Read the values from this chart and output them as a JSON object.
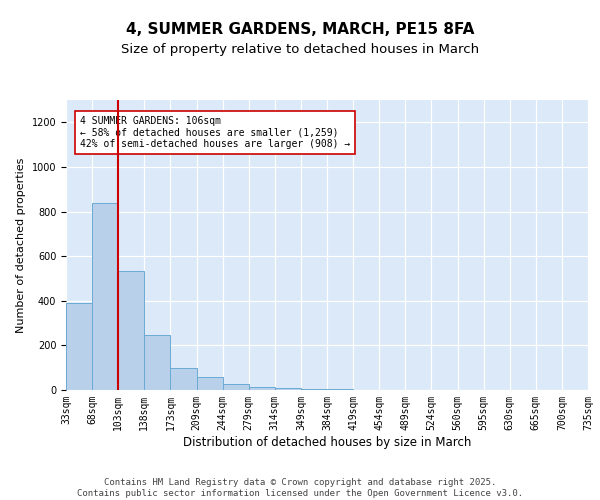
{
  "title": "4, SUMMER GARDENS, MARCH, PE15 8FA",
  "subtitle": "Size of property relative to detached houses in March",
  "xlabel": "Distribution of detached houses by size in March",
  "ylabel": "Number of detached properties",
  "bar_values": [
    390,
    840,
    535,
    248,
    100,
    58,
    25,
    15,
    10,
    5,
    3,
    2,
    1,
    1,
    1,
    0,
    0,
    0,
    0,
    0
  ],
  "categories": [
    "33sqm",
    "68sqm",
    "103sqm",
    "138sqm",
    "173sqm",
    "209sqm",
    "244sqm",
    "279sqm",
    "314sqm",
    "349sqm",
    "384sqm",
    "419sqm",
    "454sqm",
    "489sqm",
    "524sqm",
    "560sqm",
    "595sqm",
    "630sqm",
    "665sqm",
    "700sqm",
    "735sqm"
  ],
  "bar_color": "#b8d0ea",
  "bar_edge_color": "#6aaad4",
  "bar_width": 1.0,
  "vline_color": "#cc0000",
  "annotation_text": "4 SUMMER GARDENS: 106sqm\n← 58% of detached houses are smaller (1,259)\n42% of semi-detached houses are larger (908) →",
  "annotation_box_color": "white",
  "annotation_box_edge": "#cc0000",
  "ylim": [
    0,
    1300
  ],
  "yticks": [
    0,
    200,
    400,
    600,
    800,
    1000,
    1200
  ],
  "background_color": "#dce9f8",
  "grid_color": "#c5d8f0",
  "footer": "Contains HM Land Registry data © Crown copyright and database right 2025.\nContains public sector information licensed under the Open Government Licence v3.0.",
  "title_fontsize": 11,
  "subtitle_fontsize": 9.5,
  "xlabel_fontsize": 8.5,
  "ylabel_fontsize": 8,
  "tick_fontsize": 7,
  "footer_fontsize": 6.5
}
